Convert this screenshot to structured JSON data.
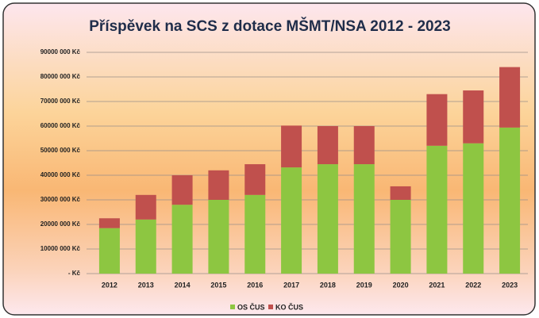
{
  "chart_data": {
    "type": "stacked_bar",
    "title": "Příspěvek na SCS z dotace MŠMT/NSA 2012 - 2023",
    "categories": [
      "2012",
      "2013",
      "2014",
      "2015",
      "2016",
      "2017",
      "2018",
      "2019",
      "2020",
      "2021",
      "2022",
      "2023"
    ],
    "series": [
      {
        "name": "OS ČUS",
        "color": "#8dc641",
        "values": [
          18500000,
          22000000,
          28000000,
          30000000,
          32000000,
          43200000,
          44500000,
          44500000,
          30000000,
          52000000,
          53000000,
          59400000
        ]
      },
      {
        "name": "KO ČUS",
        "color": "#c0504d",
        "values": [
          4000000,
          10000000,
          12000000,
          12000000,
          12500000,
          17000000,
          15500000,
          15500000,
          5500000,
          21000000,
          21500000,
          24600000
        ]
      }
    ],
    "ylim": [
      0,
      90000000
    ],
    "yticks": [
      {
        "value": 0,
        "label": "- Kč"
      },
      {
        "value": 10000000,
        "label": "10000 000 Kč"
      },
      {
        "value": 20000000,
        "label": "20000 000 Kč"
      },
      {
        "value": 30000000,
        "label": "30000 000 Kč"
      },
      {
        "value": 40000000,
        "label": "40000 000 Kč"
      },
      {
        "value": 50000000,
        "label": "50000 000 Kč"
      },
      {
        "value": 60000000,
        "label": "60000 000 Kč"
      },
      {
        "value": 70000000,
        "label": "70000 000 Kč"
      },
      {
        "value": 80000000,
        "label": "80000 000 Kč"
      },
      {
        "value": 90000000,
        "label": "90000 000 Kč"
      }
    ],
    "grid": true,
    "legend": "bottom"
  }
}
